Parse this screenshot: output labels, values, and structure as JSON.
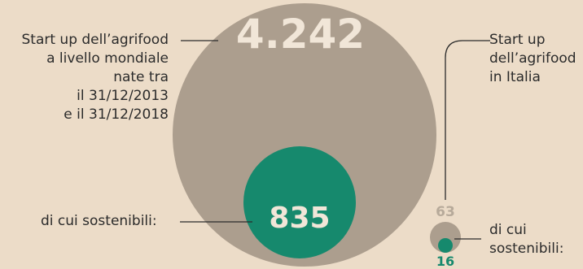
{
  "world": {
    "total": "4.242",
    "label_lines": [
      "Start up dell’agrifood",
      "a livello mondiale",
      "nate tra",
      "il 31/12/2013",
      "e il 31/12/2018"
    ],
    "sustainable": "835",
    "sustainable_label": "di cui sostenibili:"
  },
  "italy": {
    "total": "63",
    "label_lines": [
      "Start up",
      "dell’agrifood",
      "in Italia"
    ],
    "sustainable": "16",
    "sustainable_label_lines": [
      "di cui",
      "sostenibili:"
    ]
  },
  "colors": {
    "background": "#ecdcc8",
    "total_circle": "#ac9e8e",
    "sustainable_circle": "#16896d",
    "total_text": "#f1e6d8",
    "sustainable_text": "#f1e6d8"
  }
}
